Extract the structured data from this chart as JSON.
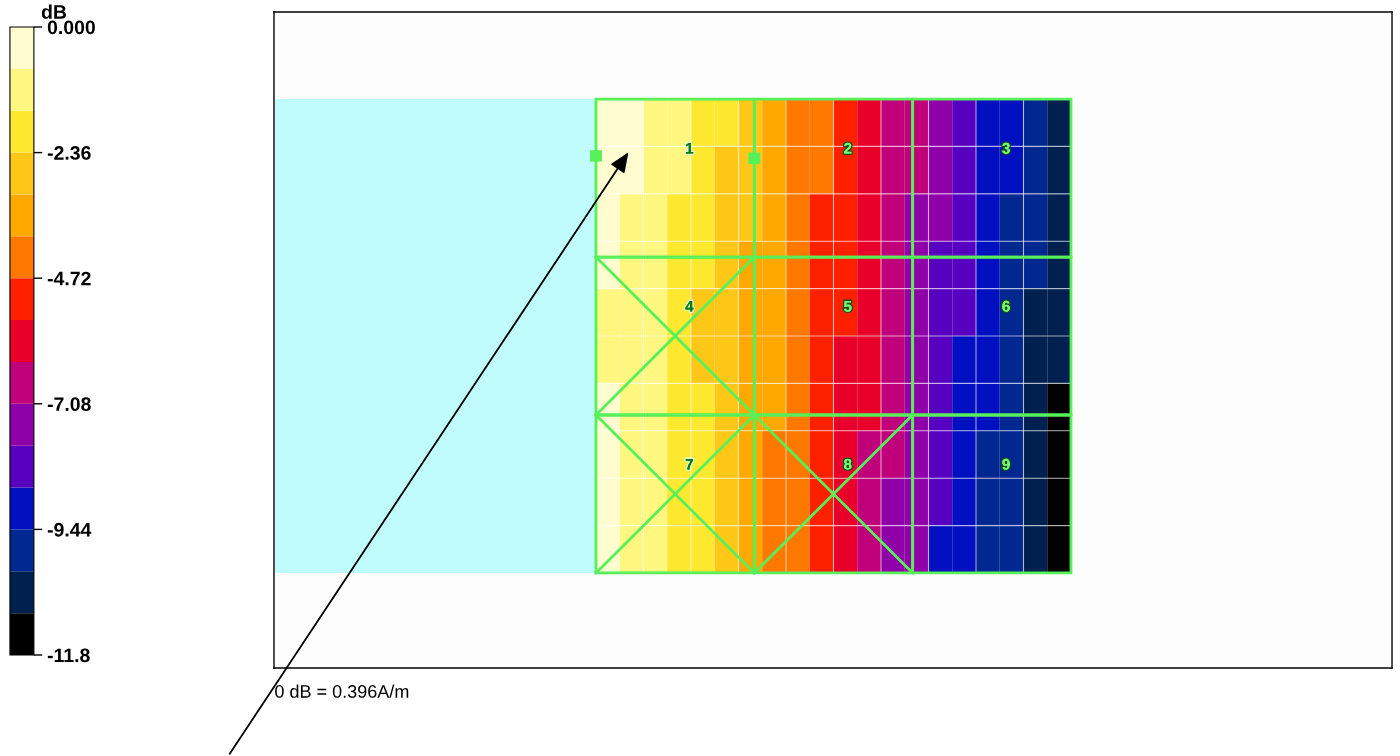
{
  "chart_data": {
    "type": "heatmap",
    "categories": [
      null,
      null,
      null,
      null,
      null,
      null,
      null,
      null,
      null,
      null,
      null,
      null,
      null,
      null,
      null,
      null,
      null,
      null,
      null,
      null
    ],
    "y_categories": [
      null,
      null,
      null,
      null,
      null,
      null,
      null,
      null,
      null,
      null
    ],
    "cells": [
      [
        -0.39,
        -0.39,
        -1.18,
        -1.18,
        -1.97,
        -1.97,
        -2.75,
        -3.54,
        -4.33,
        -4.33,
        -5.11,
        -5.9,
        -6.69,
        -6.69,
        -7.47,
        -8.26,
        -9.05,
        -9.05,
        -9.83,
        -10.62
      ],
      [
        -0.39,
        -0.39,
        -1.18,
        -1.18,
        -1.97,
        -2.75,
        -2.75,
        -3.54,
        -4.33,
        -4.33,
        -5.11,
        -5.9,
        -6.69,
        -6.69,
        -7.47,
        -8.26,
        -9.05,
        -9.05,
        -9.83,
        -10.62
      ],
      [
        -0.39,
        -1.18,
        -1.18,
        -1.97,
        -1.97,
        -2.75,
        -2.75,
        -3.54,
        -4.33,
        -5.11,
        -5.11,
        -5.9,
        -6.69,
        -7.47,
        -7.47,
        -8.26,
        -9.05,
        -9.83,
        -9.83,
        -10.62
      ],
      [
        -0.39,
        -1.18,
        -1.18,
        -1.97,
        -1.97,
        -2.75,
        -3.54,
        -3.54,
        -4.33,
        -5.11,
        -5.11,
        -5.9,
        -6.69,
        -7.47,
        -8.26,
        -8.26,
        -9.05,
        -9.83,
        -9.83,
        -10.62
      ],
      [
        -1.18,
        -1.18,
        -1.18,
        -1.97,
        -2.75,
        -2.75,
        -3.54,
        -3.54,
        -4.33,
        -5.11,
        -5.11,
        -5.9,
        -6.69,
        -7.47,
        -8.26,
        -8.26,
        -9.05,
        -9.83,
        -10.62,
        -10.62
      ],
      [
        -1.18,
        -1.18,
        -1.18,
        -1.97,
        -2.75,
        -2.75,
        -3.54,
        -3.54,
        -4.33,
        -5.11,
        -5.9,
        -5.9,
        -6.69,
        -7.47,
        -8.26,
        -9.05,
        -9.05,
        -9.83,
        -10.62,
        -10.62
      ],
      [
        -0.39,
        -1.18,
        -1.18,
        -1.97,
        -1.97,
        -2.75,
        -3.54,
        -3.54,
        -4.33,
        -5.11,
        -5.9,
        -5.9,
        -6.69,
        -7.47,
        -8.26,
        -9.05,
        -9.05,
        -9.83,
        -10.62,
        -11.41
      ],
      [
        -0.39,
        -1.18,
        -1.18,
        -1.97,
        -1.97,
        -2.75,
        -3.54,
        -4.33,
        -4.33,
        -5.11,
        -5.9,
        -6.69,
        -6.69,
        -7.47,
        -8.26,
        -9.05,
        -9.83,
        -9.83,
        -10.62,
        -11.41
      ],
      [
        -0.39,
        -1.18,
        -1.18,
        -1.97,
        -1.97,
        -2.75,
        -3.54,
        -4.33,
        -4.33,
        -5.11,
        -5.9,
        -6.69,
        -7.47,
        -7.47,
        -8.26,
        -9.05,
        -9.83,
        -9.83,
        -10.62,
        -11.41
      ],
      [
        -0.39,
        -1.18,
        -1.18,
        -1.97,
        -1.97,
        -2.75,
        -3.54,
        -4.33,
        -4.33,
        -5.11,
        -5.9,
        -6.69,
        -7.47,
        -7.47,
        -9.05,
        -9.05,
        -9.83,
        -9.83,
        -10.62,
        -11.41
      ]
    ],
    "colors": [
      "#fffdd0",
      "#fff780",
      "#ffe830",
      "#ffc818",
      "#ffa800",
      "#ff7800",
      "#ff2000",
      "#e8002a",
      "#c0007a",
      "#9000a8",
      "#5800c0",
      "#0010c0",
      "#002890",
      "#002050",
      "#000000"
    ],
    "clabel": "dB",
    "clim": [
      -11.8,
      0
    ],
    "cticks": [
      {
        "value": 0,
        "label": "0.000"
      },
      -2.36,
      -4.72,
      -7.08,
      -9.44,
      -11.8
    ],
    "grid": true,
    "tick_labels": false,
    "annotations": [
      "1",
      "2",
      "3",
      "4",
      "5",
      "6",
      "7",
      "8",
      "9",
      "0 dB = 0.396A/m"
    ]
  }
}
